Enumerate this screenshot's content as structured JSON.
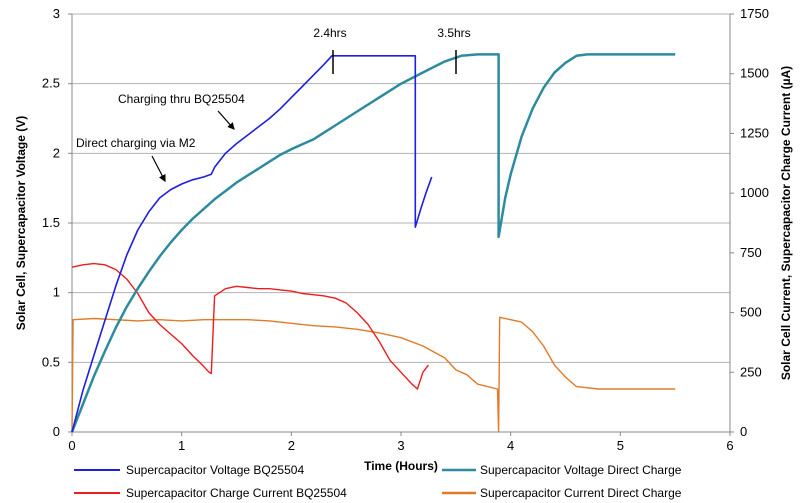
{
  "chart_data": {
    "type": "line",
    "xlabel": "Time (Hours)",
    "ylabel_left": "Solar Cell, Supercapacitor Voltage (V)",
    "ylabel_right": "Solar Cell Current, Supercapacitor Charge Current (µA)",
    "xlim": [
      0,
      6
    ],
    "ylim_left": [
      0,
      3
    ],
    "ylim_right": [
      0,
      1750
    ],
    "x_ticks": [
      "0",
      "1",
      "2",
      "3",
      "4",
      "5",
      "6"
    ],
    "y_left_ticks": [
      "0",
      "0.5",
      "1",
      "1.5",
      "2",
      "2.5",
      "3"
    ],
    "y_right_ticks": [
      "0",
      "250",
      "500",
      "750",
      "1000",
      "1250",
      "1500",
      "1750"
    ],
    "grid": "horizontal",
    "legend_position": "bottom",
    "annotations": [
      {
        "text": "2.4hrs",
        "x": 2.4,
        "y": 2.7
      },
      {
        "text": "3.5hrs",
        "x": 3.5,
        "y": 2.65
      },
      {
        "text": "Charging thru BQ25504",
        "x": 1.5,
        "y": 2.2
      },
      {
        "text": "Direct charging via M2",
        "x": 0.85,
        "y": 1.8
      }
    ],
    "series": [
      {
        "name": "Supercapacitor Voltage BQ25504",
        "axis": "left",
        "color": "#1f1fe0",
        "x": [
          0,
          0.1,
          0.2,
          0.3,
          0.4,
          0.5,
          0.6,
          0.7,
          0.8,
          0.9,
          1.0,
          1.1,
          1.2,
          1.27,
          1.3,
          1.4,
          1.5,
          1.6,
          1.7,
          1.8,
          1.9,
          2.0,
          2.1,
          2.2,
          2.3,
          2.37,
          2.38,
          2.5,
          2.7,
          2.9,
          3.1,
          3.13,
          3.13,
          3.18,
          3.23,
          3.28
        ],
        "y": [
          0,
          0.3,
          0.55,
          0.8,
          1.05,
          1.27,
          1.45,
          1.58,
          1.68,
          1.74,
          1.78,
          1.81,
          1.83,
          1.85,
          1.9,
          2.0,
          2.07,
          2.13,
          2.19,
          2.25,
          2.32,
          2.4,
          2.48,
          2.56,
          2.64,
          2.7,
          2.7,
          2.7,
          2.7,
          2.7,
          2.7,
          2.7,
          1.47,
          1.6,
          1.72,
          1.83
        ]
      },
      {
        "name": "Supercapacitor Voltage Direct Charge",
        "axis": "left",
        "color": "#2e8b9e",
        "x": [
          0,
          0.1,
          0.2,
          0.3,
          0.4,
          0.5,
          0.6,
          0.7,
          0.8,
          0.9,
          1.0,
          1.1,
          1.2,
          1.3,
          1.4,
          1.5,
          1.6,
          1.7,
          1.8,
          1.9,
          2.0,
          2.2,
          2.4,
          2.6,
          2.8,
          3.0,
          3.2,
          3.4,
          3.55,
          3.7,
          3.89,
          3.89,
          3.95,
          4.0,
          4.1,
          4.2,
          4.3,
          4.4,
          4.5,
          4.6,
          4.7,
          4.9,
          5.1,
          5.3,
          5.5
        ],
        "y": [
          0,
          0.2,
          0.4,
          0.58,
          0.75,
          0.9,
          1.03,
          1.15,
          1.26,
          1.36,
          1.45,
          1.53,
          1.6,
          1.67,
          1.73,
          1.79,
          1.84,
          1.89,
          1.94,
          1.99,
          2.03,
          2.1,
          2.2,
          2.3,
          2.4,
          2.5,
          2.58,
          2.66,
          2.7,
          2.71,
          2.71,
          1.4,
          1.68,
          1.85,
          2.12,
          2.32,
          2.47,
          2.58,
          2.65,
          2.7,
          2.71,
          2.71,
          2.71,
          2.71,
          2.71
        ]
      },
      {
        "name": "Supercapacitor Charge Current BQ25504",
        "axis": "right",
        "color": "#ee1c1c",
        "x": [
          0,
          0.1,
          0.2,
          0.3,
          0.4,
          0.5,
          0.6,
          0.7,
          0.8,
          0.9,
          1.0,
          1.1,
          1.2,
          1.25,
          1.27,
          1.3,
          1.4,
          1.5,
          1.6,
          1.7,
          1.8,
          1.9,
          2.0,
          2.1,
          2.2,
          2.3,
          2.4,
          2.5,
          2.6,
          2.7,
          2.8,
          2.9,
          3.0,
          3.1,
          3.15,
          3.2,
          3.25
        ],
        "y": [
          690,
          700,
          705,
          700,
          680,
          640,
          580,
          500,
          450,
          410,
          370,
          320,
          275,
          250,
          245,
          570,
          600,
          610,
          605,
          600,
          600,
          595,
          590,
          580,
          575,
          570,
          560,
          540,
          500,
          450,
          380,
          300,
          250,
          200,
          180,
          250,
          280
        ]
      },
      {
        "name": "Supercapacitor Current Direct Charge",
        "axis": "right",
        "color": "#e07b28",
        "x": [
          0,
          0.01,
          0.2,
          0.4,
          0.6,
          0.8,
          1.0,
          1.2,
          1.4,
          1.6,
          1.8,
          2.0,
          2.2,
          2.4,
          2.6,
          2.8,
          3.0,
          3.2,
          3.4,
          3.5,
          3.6,
          3.7,
          3.88,
          3.89,
          3.9,
          4.0,
          4.1,
          4.2,
          4.3,
          4.4,
          4.5,
          4.6,
          4.8,
          5.0,
          5.2,
          5.4,
          5.5
        ],
        "y": [
          0,
          470,
          475,
          470,
          465,
          470,
          465,
          470,
          470,
          470,
          465,
          455,
          445,
          440,
          430,
          415,
          395,
          360,
          310,
          260,
          240,
          200,
          180,
          0,
          480,
          470,
          460,
          420,
          360,
          280,
          230,
          190,
          180,
          180,
          180,
          180,
          180
        ]
      }
    ]
  }
}
